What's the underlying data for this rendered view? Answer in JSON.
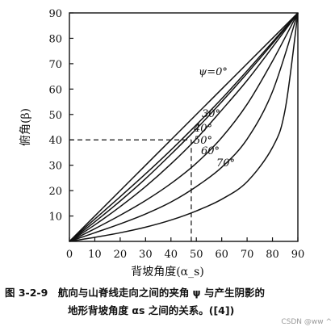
{
  "chart_data": {
    "type": "line",
    "title": "",
    "xlabel": "背坡角度(α_s)",
    "ylabel": "俯角(β)",
    "xlim": [
      0,
      90
    ],
    "ylim": [
      0,
      90
    ],
    "xticks": [
      "0",
      "10",
      "20",
      "30",
      "40",
      "50",
      "60",
      "70",
      "80",
      "90"
    ],
    "yticks": [
      "10",
      "20",
      "30",
      "40",
      "50",
      "60",
      "70",
      "80",
      "90"
    ],
    "grid": false,
    "series": [
      {
        "name": "ψ=0°",
        "x": [
          0,
          10,
          20,
          30,
          40,
          50,
          60,
          70,
          80,
          90
        ],
        "y": [
          0,
          10,
          20,
          30,
          40,
          50,
          60,
          70,
          80,
          90
        ]
      },
      {
        "name": "30°",
        "x": [
          0,
          10,
          20,
          30,
          40,
          50,
          60,
          70,
          80,
          90
        ],
        "y": [
          0,
          8.8,
          17.6,
          26.6,
          36,
          45.9,
          56.2,
          67.2,
          78.5,
          90
        ]
      },
      {
        "name": "40°",
        "x": [
          0,
          10,
          20,
          30,
          40,
          50,
          60,
          70,
          80,
          90
        ],
        "y": [
          0,
          7.7,
          15.9,
          24.7,
          34.3,
          44.3,
          55,
          66.2,
          77.9,
          90
        ]
      },
      {
        "name": "50°",
        "x": [
          0,
          10,
          20,
          30,
          40,
          50,
          60,
          70,
          80,
          90
        ],
        "y": [
          0,
          6.5,
          13.7,
          21.6,
          30.5,
          40.4,
          51.7,
          63.4,
          76.5,
          90
        ]
      },
      {
        "name": "60°",
        "x": [
          0,
          10,
          20,
          30,
          40,
          50,
          60,
          70,
          80,
          90
        ],
        "y": [
          0,
          5,
          10.3,
          16.1,
          22.8,
          30.8,
          40.9,
          54,
          71,
          90
        ]
      },
      {
        "name": "70°",
        "x": [
          0,
          10,
          20,
          30,
          40,
          50,
          60,
          70,
          80,
          90
        ],
        "y": [
          0,
          3.4,
          6.9,
          10.8,
          15.5,
          21.6,
          29.2,
          40.3,
          59,
          90
        ]
      },
      {
        "name": "",
        "x": [
          0,
          10,
          20,
          30,
          40,
          50,
          60,
          70,
          80,
          85,
          90
        ],
        "y": [
          0,
          1.6,
          3.4,
          5.6,
          8.4,
          12,
          16.6,
          23.5,
          37,
          52,
          90
        ]
      }
    ],
    "reference": {
      "x": 48,
      "y": 40,
      "style": "dashed"
    }
  },
  "caption": {
    "line1": "图 3-2-9　航向与山脊线走向之间的夹角 ψ 与产生阴影的",
    "line2": "地形背坡角度 αs 之间的关系。([4])"
  },
  "watermark": "CSDN @ww ^"
}
